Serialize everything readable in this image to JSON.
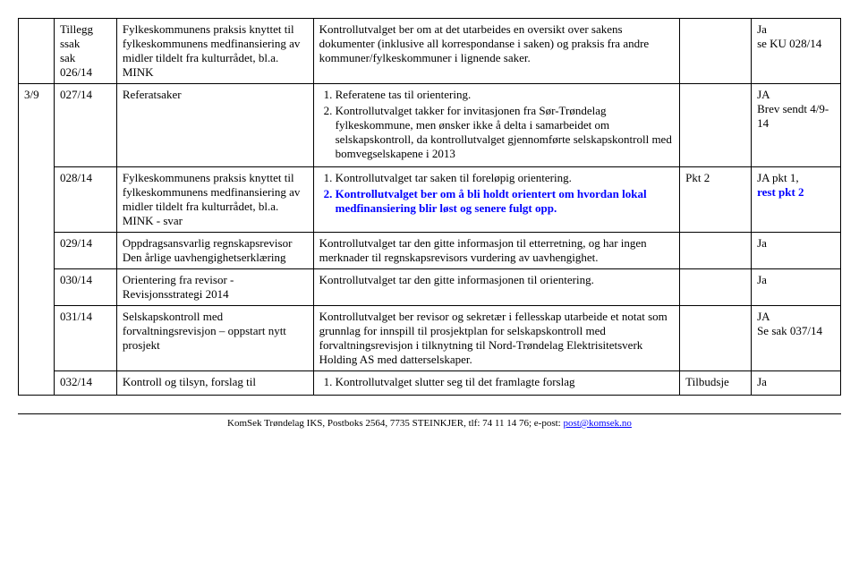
{
  "rows": [
    {
      "c1": "",
      "c2": "Tillegg\nssak\nsak\n026/14",
      "c3": "Fylkeskommunens praksis knyttet til fylkeskommunens medfinansiering av midler tildelt fra kulturrådet, bl.a. MINK",
      "c4_text": "Kontrollutvalget ber om at det utarbeides en oversikt over sakens dokumenter (inklusive all korrespondanse i saken) og praksis fra andre kommuner/fylkeskommuner i lignende saker.",
      "c4_list": null,
      "c5": "",
      "c6": "Ja\nse KU 028/14"
    },
    {
      "c1": "3/9",
      "c2": "027/14",
      "c3": "Referatsaker",
      "c4_text": null,
      "c4_list": [
        "Referatene tas til orientering.",
        "Kontrollutvalget takker for invitasjonen fra Sør-Trøndelag fylkeskommune, men ønsker ikke å delta i samarbeidet om selskapskontroll, da kontrollutvalget gjennomførte selskapskontroll med bomvegselskapene i 2013"
      ],
      "c5": "",
      "c6": "JA\nBrev sendt 4/9-14"
    },
    {
      "c1": "",
      "c2": "028/14",
      "c3": "Fylkeskommunens praksis knyttet til fylkeskommunens medfinansiering av midler tildelt fra kulturrådet, bl.a. MINK - svar",
      "c4_text": null,
      "c4_list_mixed": {
        "items": [
          {
            "text": "Kontrollutvalget tar saken til foreløpig orientering.",
            "blue": false
          },
          {
            "text": "Kontrollutvalget ber om å bli holdt orientert om hvordan lokal medfinansiering blir løst og senere fulgt opp.",
            "blue": true
          }
        ]
      },
      "c5": "Pkt 2",
      "c6_parts": [
        {
          "text": "JA pkt 1,",
          "blue": false
        },
        {
          "text": "rest pkt 2",
          "blue": true
        }
      ]
    },
    {
      "c1": "",
      "c2": "029/14",
      "c3": "Oppdragsansvarlig regnskapsrevisor\nDen årlige uavhengighetserklæring",
      "c4_text": "Kontrollutvalget tar den gitte informasjon til etterretning, og har ingen merknader til regnskapsrevisors vurdering av uavhengighet.",
      "c5": "",
      "c6": "Ja",
      "no_bottom_13": true
    },
    {
      "c1": "",
      "c2": "030/14",
      "c3": "Orientering fra revisor - Revisjonsstrategi 2014",
      "c4_text": "Kontrollutvalget tar den gitte informasjonen til orientering.",
      "c5": "",
      "c6": "Ja",
      "no_top_13": true
    },
    {
      "c1": "",
      "c2": "031/14",
      "c3": "Selskapskontroll med forvaltningsrevisjon – oppstart nytt prosjekt",
      "c4_text": "Kontrollutvalget ber revisor og sekretær i fellesskap utarbeide et notat som grunnlag for innspill til prosjektplan for selskapskontroll med forvaltningsrevisjon i tilknytning til Nord-Trøndelag Elektrisitetsverk Holding AS med datterselskaper.",
      "c5": "",
      "c6": "JA\nSe sak 037/14"
    },
    {
      "c1": "",
      "c2": "032/14",
      "c3": "Kontroll og tilsyn, forslag til",
      "c4_text": null,
      "c4_list": [
        "Kontrollutvalget slutter seg til det framlagte forslag"
      ],
      "c5": "Tilbudsje",
      "c6": "Ja"
    }
  ],
  "footer": {
    "text": "KomSek Trøndelag IKS, Postboks 2564, 7735 STEINKJER, tlf: 74 11 14 76; e-post: ",
    "link": "post@komsek.no"
  },
  "colors": {
    "blue": "#0000ff",
    "text": "#000000",
    "bg": "#ffffff",
    "border": "#000000"
  }
}
